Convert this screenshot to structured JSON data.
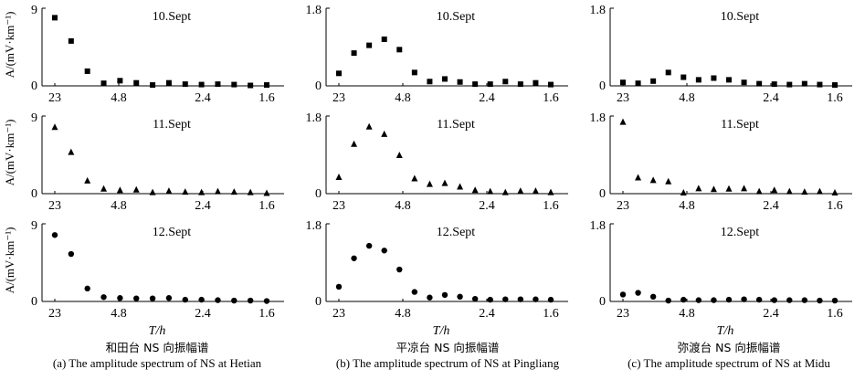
{
  "figure": {
    "y_axis_label": "A/(mV·km⁻¹)",
    "x_axis_label": "T/h",
    "x_ticks": [
      "23",
      "4.8",
      "2.4",
      "1.6"
    ]
  },
  "columns": [
    {
      "caption_cn": "和田台 NS 向振幅谱",
      "caption_en": "(a)  The amplitude spectrum of NS at Hetian",
      "ymax": "9",
      "ymax_value": 9
    },
    {
      "caption_cn": "平凉台 NS 向振幅谱",
      "caption_en": "(b) The amplitude spectrum of NS at Pingliang",
      "ymax": "1.8",
      "ymax_value": 1.8
    },
    {
      "caption_cn": "弥渡台 NS 向振幅谱",
      "caption_en": "(c)  The amplitude spectrum of NS at Midu",
      "ymax": "1.8",
      "ymax_value": 1.8
    }
  ],
  "chart_data": [
    {
      "type": "scatter",
      "station": "Hetian",
      "date": "10.Sept",
      "marker": "square",
      "ylim": [
        0,
        9
      ],
      "values": [
        7.9,
        5.2,
        1.7,
        0.3,
        0.6,
        0.35,
        0.1,
        0.35,
        0.2,
        0.15,
        0.2,
        0.15,
        0.05,
        0.1
      ]
    },
    {
      "type": "scatter",
      "station": "Hetian",
      "date": "11.Sept",
      "marker": "triangle",
      "ylim": [
        0,
        9
      ],
      "values": [
        7.7,
        4.8,
        1.5,
        0.55,
        0.4,
        0.45,
        0.15,
        0.3,
        0.2,
        0.15,
        0.25,
        0.2,
        0.15,
        0.05
      ]
    },
    {
      "type": "scatter",
      "station": "Hetian",
      "date": "12.Sept",
      "marker": "circle",
      "ylim": [
        0,
        9
      ],
      "values": [
        7.7,
        5.5,
        1.5,
        0.5,
        0.4,
        0.35,
        0.35,
        0.4,
        0.2,
        0.2,
        0.15,
        0.1,
        0.1,
        0.05
      ]
    },
    {
      "type": "scatter",
      "station": "Pingliang",
      "date": "10.Sept",
      "marker": "square",
      "ylim": [
        0,
        1.8
      ],
      "values": [
        0.29,
        0.76,
        0.94,
        1.08,
        0.84,
        0.31,
        0.1,
        0.16,
        0.09,
        0.04,
        0.04,
        0.1,
        0.04,
        0.07,
        0.03
      ]
    },
    {
      "type": "scatter",
      "station": "Pingliang",
      "date": "11.Sept",
      "marker": "triangle",
      "ylim": [
        0,
        1.8
      ],
      "values": [
        0.38,
        1.15,
        1.55,
        1.38,
        0.89,
        0.35,
        0.22,
        0.24,
        0.16,
        0.08,
        0.05,
        0.03,
        0.06,
        0.06,
        0.03
      ]
    },
    {
      "type": "scatter",
      "station": "Pingliang",
      "date": "12.Sept",
      "marker": "circle",
      "ylim": [
        0,
        1.8
      ],
      "values": [
        0.34,
        1.0,
        1.29,
        1.18,
        0.74,
        0.22,
        0.09,
        0.15,
        0.11,
        0.06,
        0.04,
        0.05,
        0.05,
        0.05,
        0.04
      ]
    },
    {
      "type": "scatter",
      "station": "Midu",
      "date": "10.Sept",
      "marker": "square",
      "ylim": [
        0,
        1.8
      ],
      "values": [
        0.08,
        0.06,
        0.11,
        0.31,
        0.2,
        0.14,
        0.18,
        0.14,
        0.08,
        0.05,
        0.04,
        0.03,
        0.05,
        0.03,
        0.02
      ]
    },
    {
      "type": "scatter",
      "station": "Midu",
      "date": "11.Sept",
      "marker": "triangle",
      "ylim": [
        0,
        1.8
      ],
      "values": [
        1.66,
        0.37,
        0.31,
        0.28,
        0.02,
        0.12,
        0.1,
        0.11,
        0.12,
        0.05,
        0.08,
        0.05,
        0.04,
        0.05,
        0.02
      ]
    },
    {
      "type": "scatter",
      "station": "Midu",
      "date": "12.Sept",
      "marker": "circle",
      "ylim": [
        0,
        1.8
      ],
      "values": [
        0.16,
        0.2,
        0.11,
        0.02,
        0.04,
        0.03,
        0.03,
        0.04,
        0.05,
        0.04,
        0.03,
        0.03,
        0.03,
        0.02,
        0.02
      ]
    }
  ]
}
